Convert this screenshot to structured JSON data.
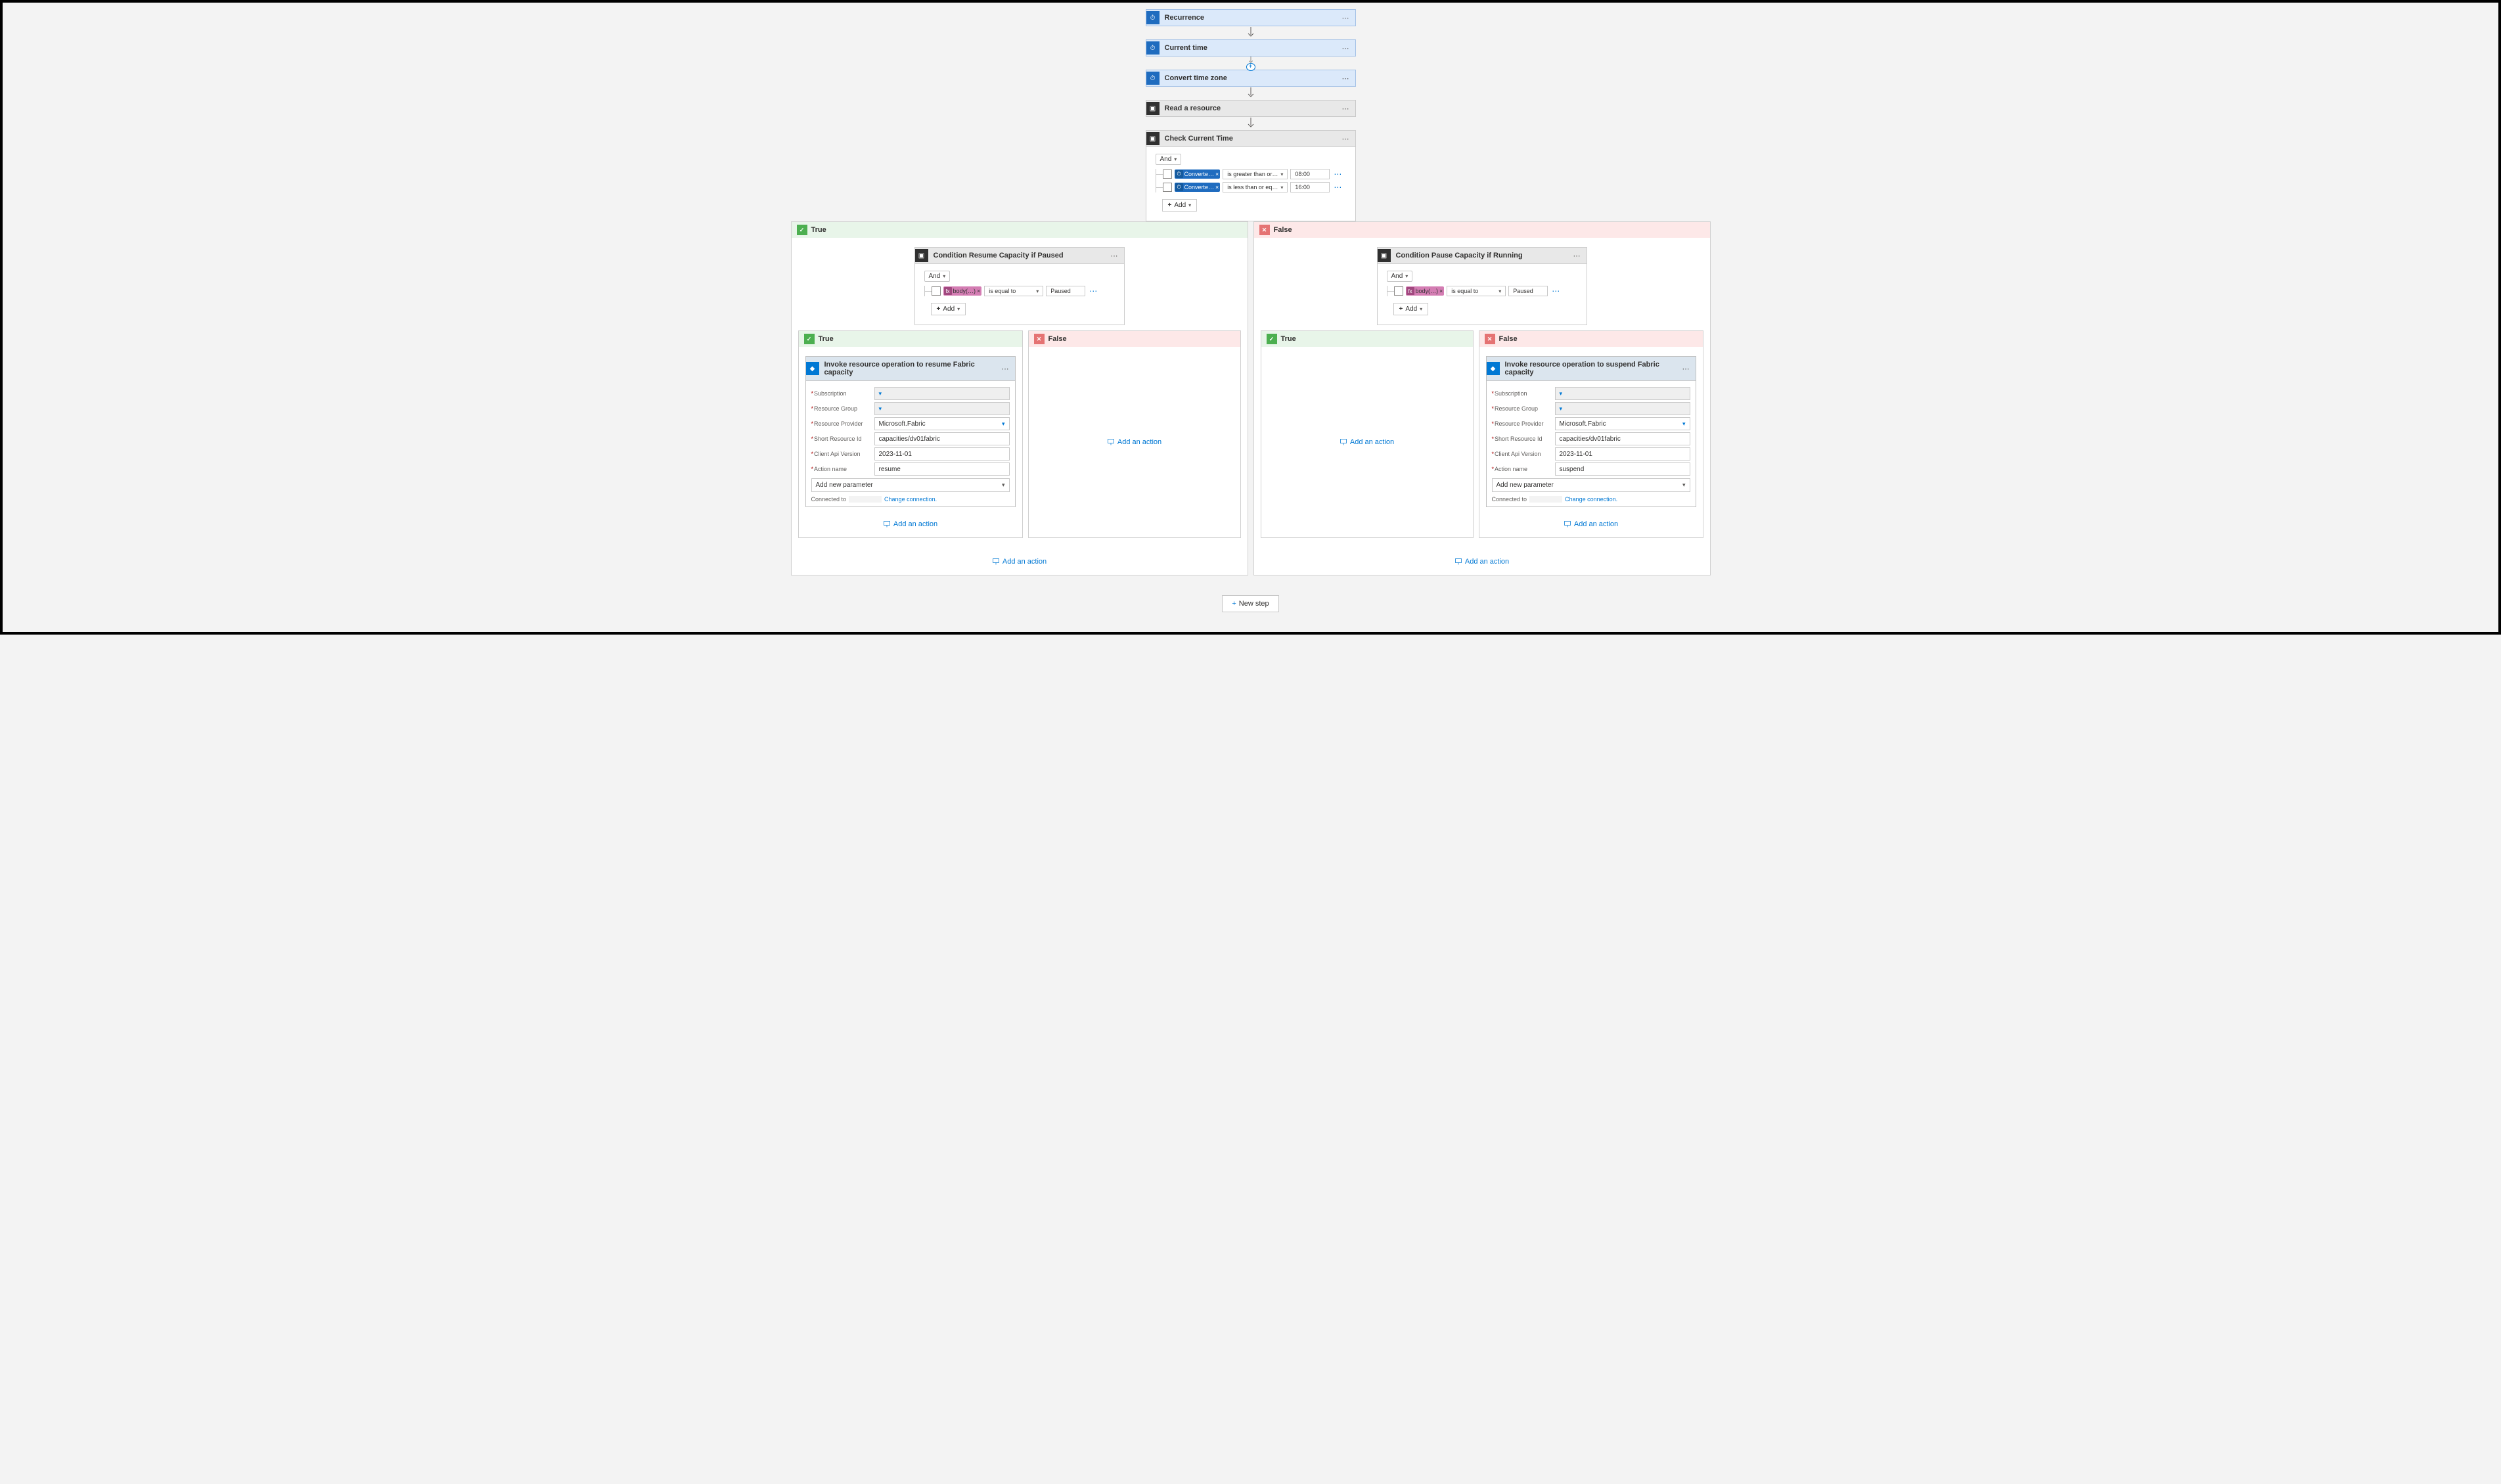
{
  "triggers": [
    {
      "title": "Recurrence",
      "style": "blue",
      "icon": "blue-ic",
      "glyph": "⏱"
    },
    {
      "title": "Current time",
      "style": "blue",
      "icon": "blue-ic",
      "glyph": "⏱"
    },
    {
      "title": "Convert time zone",
      "style": "blue",
      "icon": "blue-ic",
      "glyph": "⏱"
    },
    {
      "title": "Read a resource",
      "style": "gray",
      "icon": "dark-ic",
      "glyph": "▣"
    }
  ],
  "check": {
    "title": "Check Current Time",
    "logic": "And",
    "rows": [
      {
        "tokenLabel": "Converte…",
        "tokenKind": "blue-tk",
        "tokenGlyph": "⏱",
        "op": "is greater than or…",
        "value": "08:00"
      },
      {
        "tokenLabel": "Converte…",
        "tokenKind": "blue-tk",
        "tokenGlyph": "⏱",
        "op": "is less than or eq…",
        "value": "16:00"
      }
    ],
    "addLabel": "Add"
  },
  "labels": {
    "true": "True",
    "false": "False",
    "addAction": "Add an action",
    "newStep": "New step",
    "dots": "⋯",
    "addNewParam": "Add new parameter",
    "connectedTo": "Connected to",
    "changeConnection": "Change connection."
  },
  "conditionResume": {
    "title": "Condition Resume Capacity if Paused",
    "logic": "And",
    "row": {
      "tokenLabel": "body(…)",
      "tokenKind": "pink-tk",
      "tokenGlyph": "fx",
      "op": "is equal to",
      "value": "Paused"
    },
    "addLabel": "Add"
  },
  "conditionPause": {
    "title": "Condition Pause Capacity if Running",
    "logic": "And",
    "row": {
      "tokenLabel": "body(…)",
      "tokenKind": "pink-tk",
      "tokenGlyph": "fx",
      "op": "is equal to",
      "value": "Paused"
    },
    "addLabel": "Add"
  },
  "invokeResume": {
    "title": "Invoke resource operation to resume Fabric capacity",
    "fields": {
      "subscription": {
        "label": "Subscription",
        "value": "",
        "redacted": true,
        "select": true
      },
      "resourceGroup": {
        "label": "Resource Group",
        "value": "",
        "redacted": true,
        "select": true
      },
      "resourceProvider": {
        "label": "Resource Provider",
        "value": "Microsoft.Fabric",
        "select": true
      },
      "shortResourceId": {
        "label": "Short Resource Id",
        "value": "capacities/dv01fabric"
      },
      "clientApiVersion": {
        "label": "Client Api Version",
        "value": "2023-11-01"
      },
      "actionName": {
        "label": "Action name",
        "value": "resume"
      }
    }
  },
  "invokeSuspend": {
    "title": "Invoke resource operation to suspend Fabric capacity",
    "fields": {
      "subscription": {
        "label": "Subscription",
        "value": "",
        "redacted": true,
        "select": true
      },
      "resourceGroup": {
        "label": "Resource Group",
        "value": "",
        "redacted": true,
        "select": true
      },
      "resourceProvider": {
        "label": "Resource Provider",
        "value": "Microsoft.Fabric",
        "select": true
      },
      "shortResourceId": {
        "label": "Short Resource Id",
        "value": "capacities/dv01fabric"
      },
      "clientApiVersion": {
        "label": "Client Api Version",
        "value": "2023-11-01"
      },
      "actionName": {
        "label": "Action name",
        "value": "suspend"
      }
    }
  },
  "colors": {
    "trueBg": "#e8f5e9",
    "falseBg": "#fde8e8",
    "trueIc": "#4caf50",
    "falseIc": "#e57373",
    "link": "#0078d4"
  }
}
